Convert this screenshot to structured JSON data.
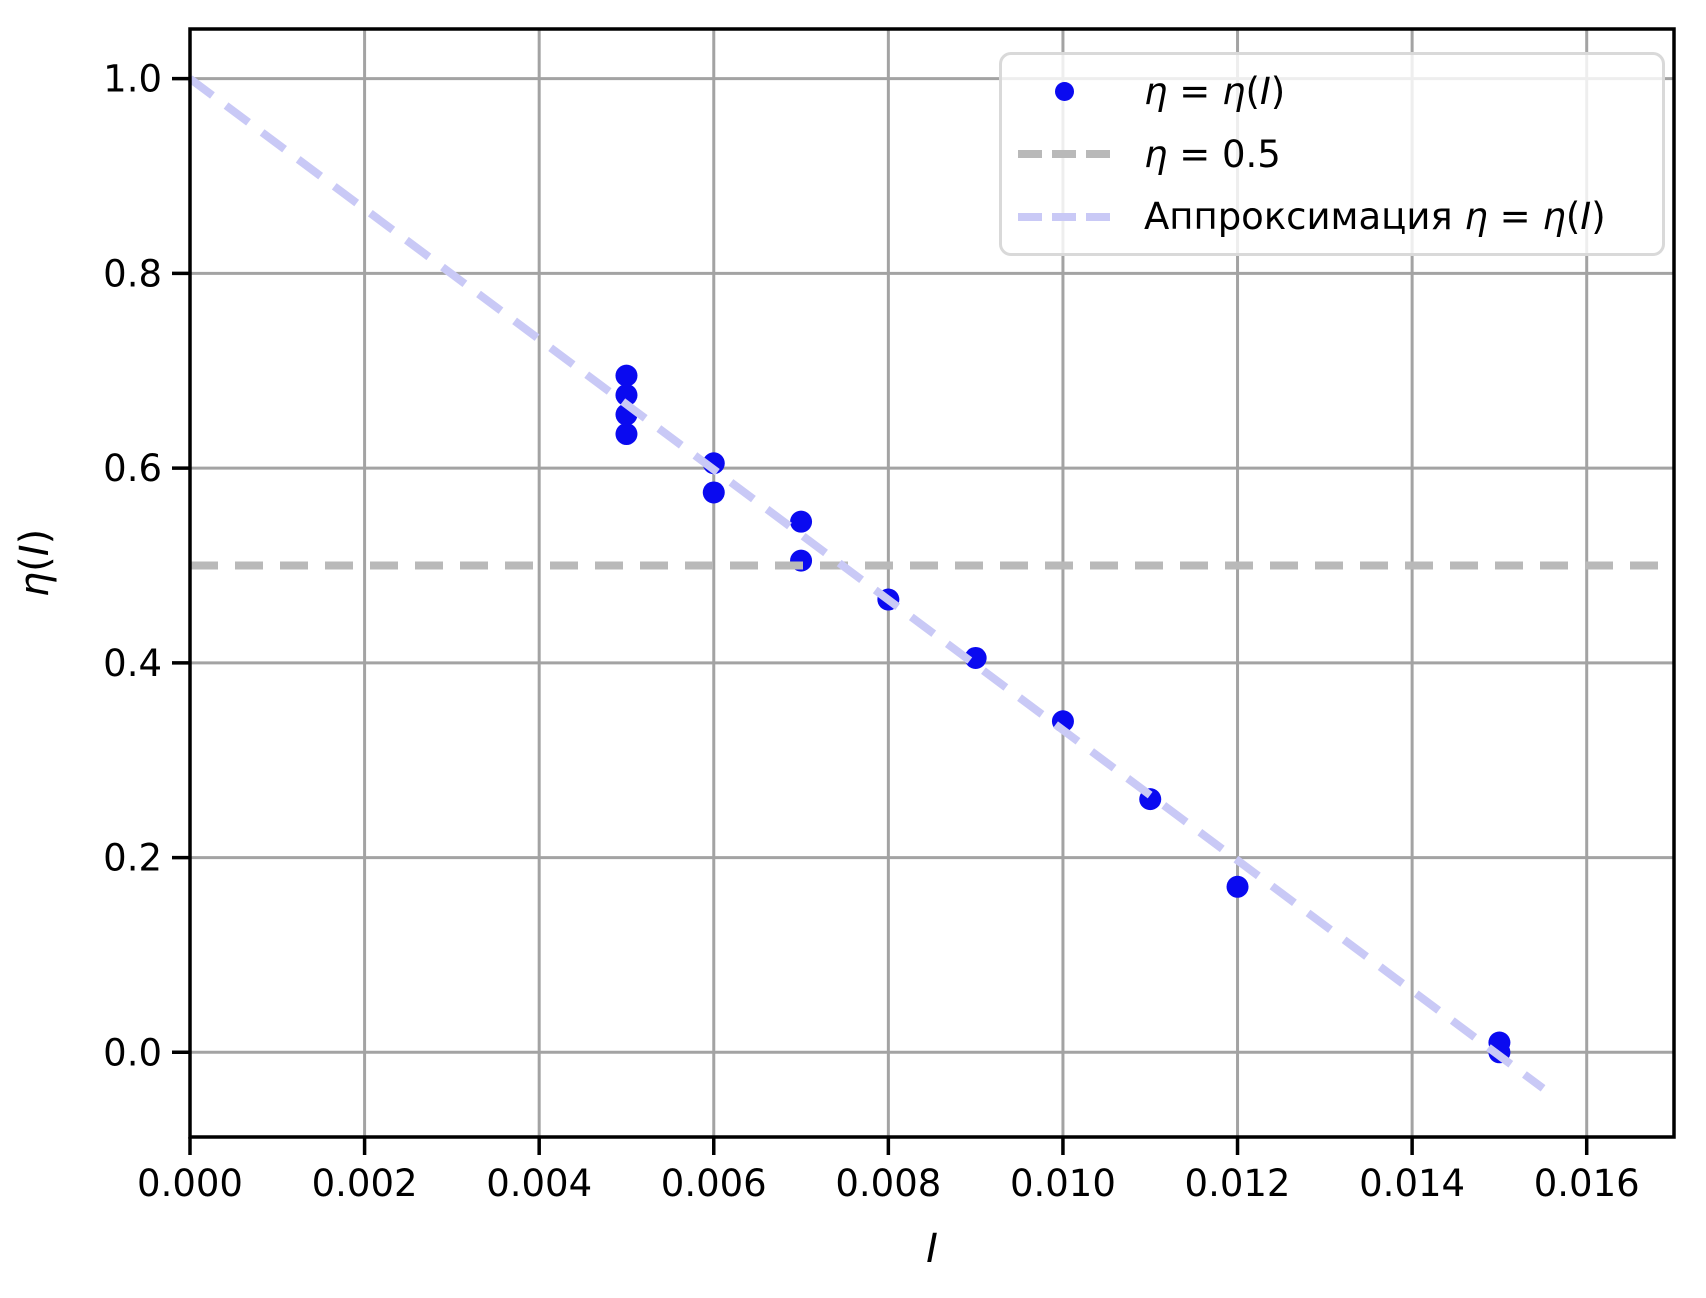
{
  "figure": {
    "background": "#ffffff"
  },
  "chart_data": {
    "type": "scatter",
    "title": "",
    "xlabel": "I",
    "ylabel": "η(I)",
    "xlabel_parts": [
      {
        "text": "I",
        "italic": true
      }
    ],
    "ylabel_parts": [
      {
        "text": "η",
        "italic": true
      },
      {
        "text": "(",
        "italic": false
      },
      {
        "text": "I",
        "italic": true
      },
      {
        "text": ")",
        "italic": false
      }
    ],
    "xlim": [
      0.0,
      0.017
    ],
    "ylim": [
      -0.087,
      1.051
    ],
    "grid": true,
    "grid_color": "#a3a3a3",
    "axis_color": "#000000",
    "xticks": {
      "values": [
        0.0,
        0.002,
        0.004,
        0.006,
        0.008,
        0.01,
        0.012,
        0.014,
        0.016
      ],
      "labels": [
        "0.000",
        "0.002",
        "0.004",
        "0.006",
        "0.008",
        "0.010",
        "0.012",
        "0.014",
        "0.016"
      ]
    },
    "yticks": {
      "values": [
        0.0,
        0.2,
        0.4,
        0.6,
        0.8,
        1.0
      ],
      "labels": [
        "0.0",
        "0.2",
        "0.4",
        "0.6",
        "0.8",
        "1.0"
      ]
    },
    "series": [
      {
        "name": "η = η(I)",
        "type": "scatter",
        "color": "#0a0af0",
        "marker_radius": 11,
        "x": [
          0.005,
          0.005,
          0.005,
          0.005,
          0.006,
          0.006,
          0.007,
          0.007,
          0.008,
          0.009,
          0.01,
          0.011,
          0.012,
          0.015,
          0.015
        ],
        "y": [
          0.695,
          0.675,
          0.655,
          0.635,
          0.605,
          0.575,
          0.545,
          0.505,
          0.465,
          0.405,
          0.34,
          0.26,
          0.17,
          0.01,
          0.0
        ]
      },
      {
        "name": "η = 0.5",
        "type": "hline",
        "color": "#b9b9b9",
        "linestyle": "dashed",
        "y": 0.5
      },
      {
        "name": "Аппроксимация η = η(I)",
        "type": "line",
        "color": "#c9c9f6",
        "linestyle": "dashed",
        "x": [
          0.0,
          0.0155
        ],
        "y": [
          1.0,
          -0.037
        ]
      }
    ],
    "legend": {
      "position": "upper right",
      "entries": [
        {
          "marker": "dot",
          "color": "#0a0af0",
          "label": "η = η(I)",
          "parts": [
            {
              "text": "η",
              "italic": true
            },
            {
              "text": " = ",
              "italic": false
            },
            {
              "text": "η",
              "italic": true
            },
            {
              "text": "(",
              "italic": false
            },
            {
              "text": "I",
              "italic": true
            },
            {
              "text": ")",
              "italic": false
            }
          ]
        },
        {
          "marker": "dashes",
          "color": "#b9b9b9",
          "label": "η = 0.5",
          "parts": [
            {
              "text": "η",
              "italic": true
            },
            {
              "text": " = 0.5",
              "italic": false
            }
          ]
        },
        {
          "marker": "dashes",
          "color": "#c9c9f6",
          "label": "Аппроксимация η = η(I)",
          "parts": [
            {
              "text": "Аппроксимация ",
              "italic": false
            },
            {
              "text": "η",
              "italic": true
            },
            {
              "text": " = ",
              "italic": false
            },
            {
              "text": "η",
              "italic": true
            },
            {
              "text": "(",
              "italic": false
            },
            {
              "text": "I",
              "italic": true
            },
            {
              "text": ")",
              "italic": false
            }
          ]
        }
      ]
    }
  }
}
